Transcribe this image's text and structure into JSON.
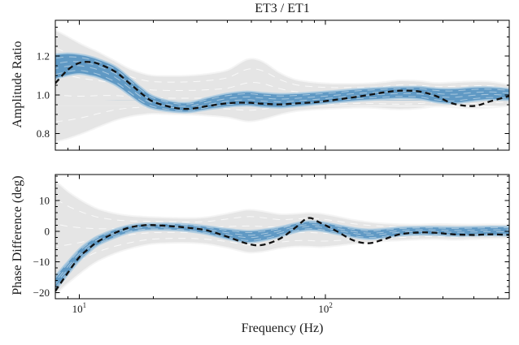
{
  "chart_data": {
    "type": "line",
    "title": "ET3 / ET1",
    "xlabel": "Frequency (Hz)",
    "xscale": "log",
    "xlim": [
      8,
      557
    ],
    "xticks": [
      {
        "value": 10,
        "base": "10",
        "exp": "1"
      },
      {
        "value": 100,
        "base": "10",
        "exp": "2"
      }
    ],
    "x": [
      8,
      9,
      10,
      11,
      12,
      14,
      16,
      18,
      20,
      24,
      28,
      33,
      40,
      48,
      55,
      65,
      75,
      85,
      95,
      110,
      130,
      150,
      170,
      200,
      240,
      280,
      330,
      400,
      470,
      560
    ],
    "colors": {
      "wide_band": "#e5e5e5",
      "wide_band_edge": "#f4f4f4",
      "narrow_band": "#6099c4",
      "narrow_band_edge": "#b0cde1",
      "dashed_line": "#111111",
      "axis": "#000000"
    },
    "panels": [
      {
        "ylabel": "Amplitude Ratio",
        "ylim": [
          0.715,
          1.385
        ],
        "yticks": [
          0.8,
          1.0,
          1.2
        ],
        "ytick_labels": [
          "0.8",
          "1.0",
          "1.2"
        ],
        "yminor_step": 0.05,
        "series": [
          {
            "name": "wide-uncertainty-band",
            "type": "band",
            "color": "#e5e5e5",
            "edge": "#f4f4f4",
            "streak": "#ffffff",
            "upper": [
              1.335,
              1.3,
              1.268,
              1.242,
              1.22,
              1.175,
              1.135,
              1.112,
              1.1,
              1.098,
              1.1,
              1.108,
              1.128,
              1.183,
              1.175,
              1.115,
              1.08,
              1.068,
              1.062,
              1.058,
              1.058,
              1.06,
              1.065,
              1.075,
              1.072,
              1.062,
              1.065,
              1.07,
              1.068,
              1.052
            ],
            "lower": [
              0.758,
              0.775,
              0.795,
              0.815,
              0.835,
              0.868,
              0.888,
              0.898,
              0.903,
              0.9,
              0.898,
              0.893,
              0.884,
              0.863,
              0.872,
              0.898,
              0.915,
              0.922,
              0.926,
              0.93,
              0.934,
              0.934,
              0.93,
              0.925,
              0.93,
              0.94,
              0.936,
              0.93,
              0.935,
              0.944
            ]
          },
          {
            "name": "narrow-uncertainty-band",
            "type": "band",
            "color": "#6099c4",
            "edge": "#b0cde1",
            "streak": "#ffffff",
            "upper": [
              1.21,
              1.215,
              1.21,
              1.2,
              1.185,
              1.148,
              1.09,
              1.035,
              0.995,
              0.966,
              0.962,
              0.985,
              1.008,
              1.018,
              1.012,
              1.006,
              1.008,
              1.012,
              1.016,
              1.022,
              1.03,
              1.035,
              1.038,
              1.042,
              1.043,
              1.035,
              1.033,
              1.04,
              1.04,
              1.032
            ],
            "lower": [
              1.082,
              1.1,
              1.108,
              1.1,
              1.088,
              1.05,
              0.998,
              0.952,
              0.928,
              0.913,
              0.91,
              0.924,
              0.938,
              0.944,
              0.938,
              0.934,
              0.94,
              0.946,
              0.952,
              0.96,
              0.968,
              0.973,
              0.977,
              0.982,
              0.978,
              0.962,
              0.955,
              0.968,
              0.975,
              0.972
            ]
          },
          {
            "name": "measured-ratio-dashed-line",
            "type": "dashed-line",
            "color": "#111111",
            "values": [
              1.06,
              1.13,
              1.165,
              1.17,
              1.16,
              1.12,
              1.06,
              1.005,
              0.965,
              0.935,
              0.928,
              0.942,
              0.957,
              0.96,
              0.955,
              0.951,
              0.956,
              0.96,
              0.965,
              0.975,
              0.988,
              1.0,
              1.012,
              1.022,
              1.018,
              0.995,
              0.955,
              0.943,
              0.968,
              0.995
            ]
          }
        ]
      },
      {
        "ylabel": "Phase Difference (deg)",
        "ylim": [
          -22,
          18.5
        ],
        "yticks": [
          -20,
          -10,
          0,
          10
        ],
        "ytick_labels": [
          "−20",
          "−10",
          "0",
          "10"
        ],
        "yminor_step": 2,
        "series": [
          {
            "name": "wide-uncertainty-band",
            "type": "band",
            "color": "#e5e5e5",
            "edge": "#f4f4f4",
            "streak": "#ffffff",
            "upper": [
              16.5,
              13.0,
              10.5,
              8.6,
              7.2,
              5.8,
              5.1,
              4.8,
              4.6,
              4.4,
              4.3,
              4.6,
              5.8,
              7.0,
              6.6,
              5.6,
              5.7,
              6.0,
              5.8,
              4.9,
              3.7,
              3.0,
              2.6,
              2.3,
              2.2,
              2.4,
              2.3,
              2.2,
              2.3,
              2.2
            ],
            "lower": [
              -20.6,
              -17.0,
              -14.0,
              -11.5,
              -9.6,
              -7.2,
              -5.7,
              -4.7,
              -4.1,
              -3.8,
              -3.8,
              -4.2,
              -5.4,
              -6.9,
              -6.7,
              -5.6,
              -5.0,
              -5.0,
              -5.2,
              -4.8,
              -4.1,
              -3.7,
              -3.3,
              -3.0,
              -2.7,
              -2.6,
              -2.8,
              -2.6,
              -2.4,
              -2.3
            ]
          },
          {
            "name": "narrow-uncertainty-band",
            "type": "band",
            "color": "#6099c4",
            "edge": "#b0cde1",
            "streak": "#ffffff",
            "upper": [
              -14.5,
              -9.8,
              -5.8,
              -3.2,
              -1.4,
              0.7,
              2.0,
              2.5,
              2.6,
              2.6,
              2.3,
              1.7,
              0.8,
              0.2,
              0.5,
              1.4,
              2.6,
              3.3,
              3.1,
              2.2,
              1.1,
              0.6,
              0.8,
              1.3,
              1.5,
              1.5,
              1.4,
              1.5,
              1.6,
              1.6
            ],
            "lower": [
              -19.3,
              -14.2,
              -9.8,
              -6.8,
              -4.5,
              -2.1,
              -0.5,
              0.2,
              0.4,
              0.3,
              -0.1,
              -1.0,
              -2.6,
              -3.7,
              -3.2,
              -1.9,
              -0.4,
              0.3,
              0.1,
              -0.9,
              -2.0,
              -2.6,
              -2.3,
              -1.5,
              -1.2,
              -1.3,
              -1.6,
              -1.5,
              -1.4,
              -1.5
            ]
          },
          {
            "name": "measured-phase-dashed-line",
            "type": "dashed-line",
            "color": "#111111",
            "values": [
              -19.5,
              -13.5,
              -8.5,
              -5.5,
              -3.2,
              -0.5,
              1.2,
              1.9,
              2.0,
              1.6,
              1.1,
              0.3,
              -1.8,
              -4.0,
              -4.5,
              -2.5,
              1.0,
              4.3,
              2.8,
              0.2,
              -3.0,
              -3.9,
              -2.8,
              -1.0,
              -0.4,
              -0.5,
              -1.0,
              -1.2,
              -1.0,
              -1.2
            ]
          }
        ]
      }
    ]
  }
}
